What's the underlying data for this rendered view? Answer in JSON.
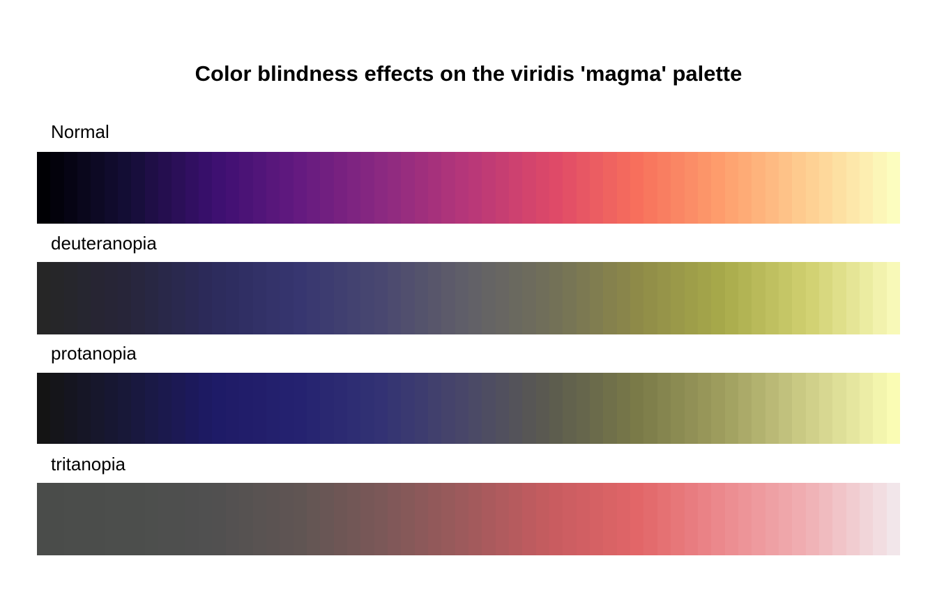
{
  "chart_data": {
    "type": "heatmap",
    "title": "Color blindness effects on the viridis 'magma' palette",
    "legend": "none",
    "grid": false,
    "series": [
      {
        "name": "Normal",
        "colors": [
          "#000004",
          "#140e36",
          "#3b0f70",
          "#641a80",
          "#8c2981",
          "#b73779",
          "#de4968",
          "#f7705c",
          "#fe9f6d",
          "#fecf92",
          "#fcfdbf"
        ]
      },
      {
        "name": "deuteranopia",
        "colors": [
          "#262626",
          "#27253a",
          "#2c2b5c",
          "#373670",
          "#4a4870",
          "#616068",
          "#727058",
          "#8e8a48",
          "#a8aa4a",
          "#d0d070",
          "#f8f9b8"
        ]
      },
      {
        "name": "protanopia",
        "colors": [
          "#141414",
          "#18183a",
          "#1e1a66",
          "#252270",
          "#333374",
          "#4a4868",
          "#5c5c4e",
          "#7a7a48",
          "#9f9e5e",
          "#cece88",
          "#fafcb4"
        ]
      },
      {
        "name": "tritanopia",
        "colors": [
          "#4a4c4a",
          "#4c4e4c",
          "#505050",
          "#605553",
          "#7c5858",
          "#a05a5c",
          "#c85c60",
          "#e26668",
          "#ec8a8e",
          "#f0b0b4",
          "#f2e6ea"
        ]
      }
    ]
  }
}
